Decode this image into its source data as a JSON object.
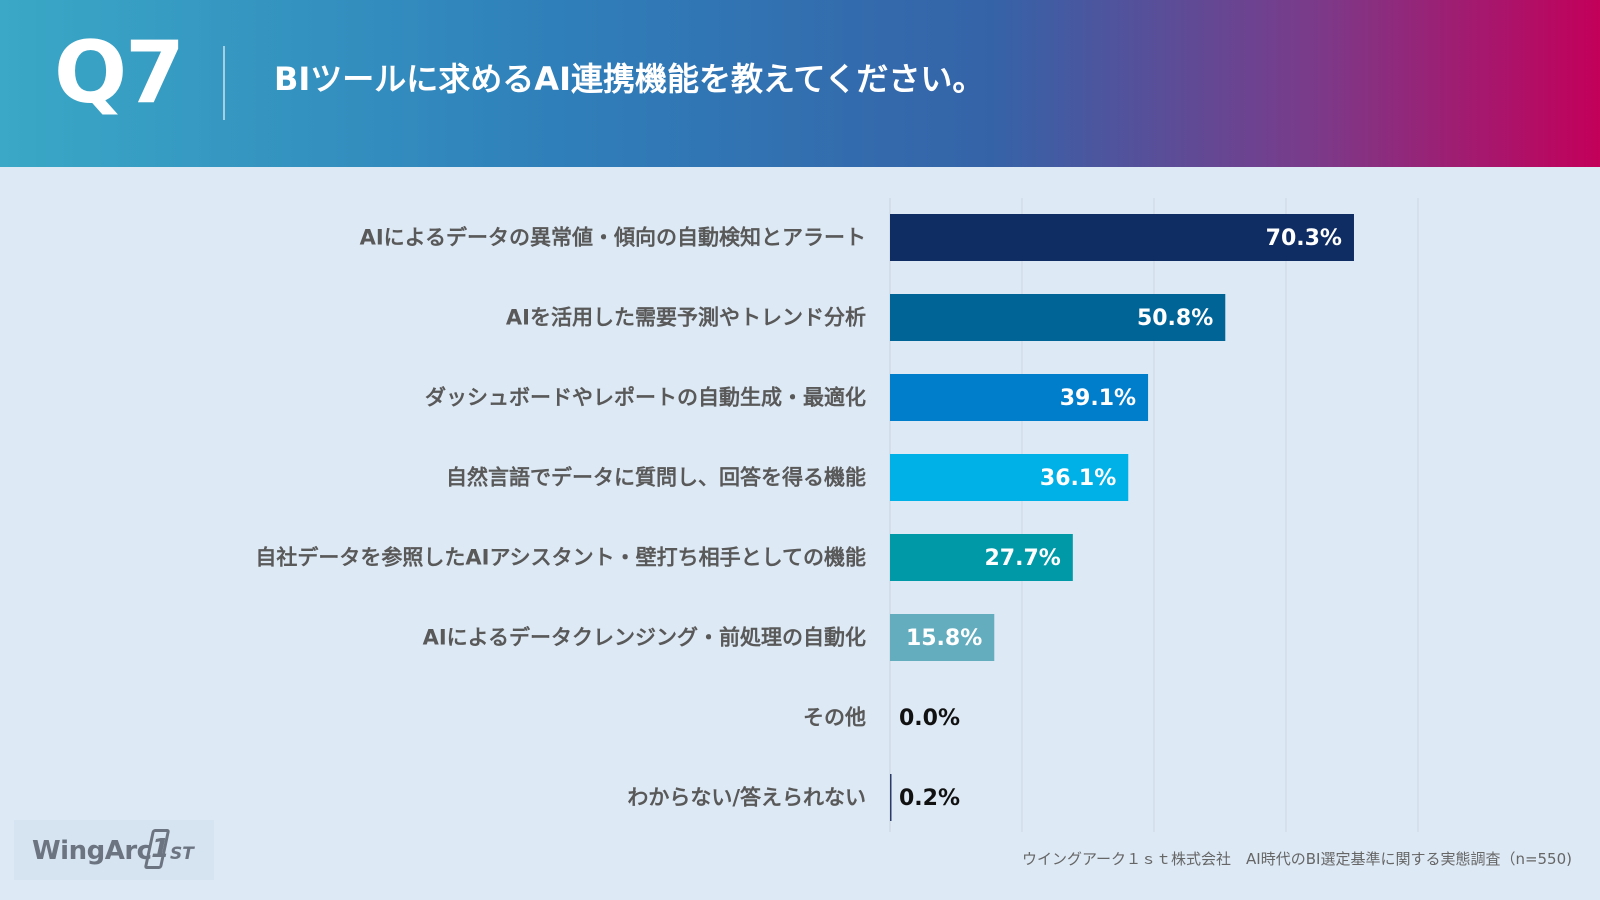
{
  "header": {
    "q_label": "Q7",
    "title": "BIツールに求めるAI連携機能を教えてください。"
  },
  "chart_data": {
    "type": "bar",
    "orientation": "horizontal",
    "categories": [
      "AIによるデータの異常値・傾向の自動検知とアラート",
      "AIを活用した需要予測やトレンド分析",
      "ダッシュボードやレポートの自動生成・最適化",
      "自然言語でデータに質問し、回答を得る機能",
      "自社データを参照したAIアシスタント・壁打ち相手としての機能",
      "AIによるデータクレンジング・前処理の自動化",
      "その他",
      "わからない/答えられない"
    ],
    "values": [
      70.3,
      50.8,
      39.1,
      36.1,
      27.7,
      15.8,
      0.0,
      0.2
    ],
    "value_labels": [
      "70.3%",
      "50.8%",
      "39.1%",
      "36.1%",
      "27.7%",
      "15.8%",
      "0.0%",
      "0.2%"
    ],
    "bar_colors": [
      "#0f2d63",
      "#006497",
      "#007dcb",
      "#00b1e8",
      "#0099a8",
      "#64adbf",
      "#7f7f7f",
      "#2b3a67"
    ],
    "xlim": [
      0,
      80
    ],
    "grid": true,
    "legend": "none"
  },
  "footer": {
    "logo_text": "WingArc",
    "logo_digit": "1",
    "logo_suffix": "ST",
    "source": "ウイングアーク１ｓｔ株式会社　AI時代のBI選定基準に関する実態調査（n=550)"
  }
}
